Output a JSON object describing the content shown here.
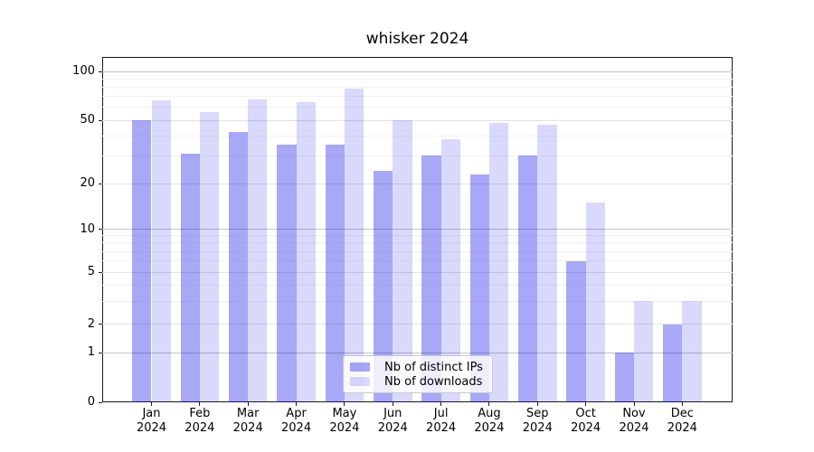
{
  "title": "whisker 2024",
  "chart_data": {
    "type": "bar",
    "title": "whisker 2024",
    "categories": [
      "Jan 2024",
      "Feb 2024",
      "Mar 2024",
      "Apr 2024",
      "May 2024",
      "Jun 2024",
      "Jul 2024",
      "Aug 2024",
      "Sep 2024",
      "Oct 2024",
      "Nov 2024",
      "Dec 2024"
    ],
    "month_line1": [
      "Jan",
      "Feb",
      "Mar",
      "Apr",
      "May",
      "Jun",
      "Jul",
      "Aug",
      "Sep",
      "Oct",
      "Nov",
      "Dec"
    ],
    "month_line2": "2024",
    "series": [
      {
        "name": "Nb of distinct IPs",
        "values": [
          50,
          31,
          42,
          35,
          35,
          24,
          30,
          23,
          30,
          6,
          1,
          2
        ],
        "color": "rgba(0,0,230,0.34)"
      },
      {
        "name": "Nb of downloads",
        "values": [
          66,
          56,
          67,
          65,
          78,
          50,
          38,
          48,
          47,
          15,
          3,
          3
        ],
        "color": "rgba(0,0,230,0.15)"
      }
    ],
    "xlabel": "",
    "ylabel": "",
    "yscale": "symlog",
    "y_ticks": [
      0,
      1,
      2,
      5,
      10,
      20,
      50,
      100
    ],
    "y_minor_ticks": [
      3,
      4,
      6,
      7,
      8,
      9,
      30,
      40,
      60,
      70,
      80,
      90
    ],
    "ylim": [
      0,
      120
    ],
    "grid": true,
    "legend_position": "lower center"
  },
  "legend": {
    "items": [
      {
        "label": "Nb of distinct IPs",
        "color": "rgba(0,0,230,0.34)"
      },
      {
        "label": "Nb of downloads",
        "color": "rgba(0,0,230,0.15)"
      }
    ]
  }
}
